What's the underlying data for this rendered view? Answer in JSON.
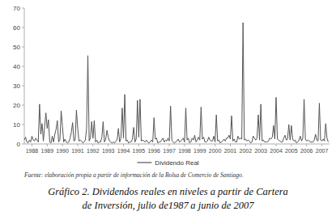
{
  "chart_data": {
    "type": "line",
    "title": "Gráfico 2. Dividendos reales en niveles a partir de Cartera\nde Inversión, julio de1987 a junio de 2007",
    "annotations": [
      "Fuente: elaboración propia a partir de información de la Bolsa de Comercio de Santiago."
    ],
    "categories": [
      null,
      null,
      null,
      null,
      null,
      null,
      "1988",
      null,
      null,
      null,
      null,
      null,
      null,
      null,
      null,
      null,
      null,
      null,
      "1989",
      null,
      null,
      null,
      null,
      null,
      null,
      null,
      null,
      null,
      null,
      null,
      "1990",
      null,
      null,
      null,
      null,
      null,
      null,
      null,
      null,
      null,
      null,
      null,
      "1991",
      null,
      null,
      null,
      null,
      null,
      null,
      null,
      null,
      null,
      null,
      null,
      "1992",
      null,
      null,
      null,
      null,
      null,
      null,
      null,
      null,
      null,
      null,
      null,
      "1993",
      null,
      null,
      null,
      null,
      null,
      null,
      null,
      null,
      null,
      null,
      null,
      "1994",
      null,
      null,
      null,
      null,
      null,
      null,
      null,
      null,
      null,
      null,
      null,
      "1995",
      null,
      null,
      null,
      null,
      null,
      null,
      null,
      null,
      null,
      null,
      null,
      "1996",
      null,
      null,
      null,
      null,
      null,
      null,
      null,
      null,
      null,
      null,
      null,
      "1997",
      null,
      null,
      null,
      null,
      null,
      null,
      null,
      null,
      null,
      null,
      null,
      "1998",
      null,
      null,
      null,
      null,
      null,
      null,
      null,
      null,
      null,
      null,
      null,
      "1999",
      null,
      null,
      null,
      null,
      null,
      null,
      null,
      null,
      null,
      null,
      null,
      "2000",
      null,
      null,
      null,
      null,
      null,
      null,
      null,
      null,
      null,
      null,
      null,
      "2001",
      null,
      null,
      null,
      null,
      null,
      null,
      null,
      null,
      null,
      null,
      null,
      "2002",
      null,
      null,
      null,
      null,
      null,
      null,
      null,
      null,
      null,
      null,
      null,
      "2003",
      null,
      null,
      null,
      null,
      null,
      null,
      null,
      null,
      null,
      null,
      null,
      "2004",
      null,
      null,
      null,
      null,
      null,
      null,
      null,
      null,
      null,
      null,
      null,
      "2005",
      null,
      null,
      null,
      null,
      null,
      null,
      null,
      null,
      null,
      null,
      null,
      "2006",
      null,
      null,
      null,
      null,
      null,
      null,
      null,
      null,
      null,
      null,
      null,
      "2007",
      null,
      null,
      null,
      null,
      null
    ],
    "series": [
      {
        "name": "Dividendo Real",
        "color": "#555555",
        "values": [
          2.0,
          3.5,
          1.0,
          0.5,
          2.0,
          1.0,
          4.0,
          2.0,
          1.5,
          3.0,
          2.0,
          1.0,
          20.5,
          5.0,
          10.5,
          1.5,
          9.0,
          16.0,
          8.0,
          12.5,
          1.0,
          0.5,
          4.0,
          1.0,
          5.0,
          7.5,
          12.0,
          1.0,
          2.0,
          17.0,
          9.0,
          1.0,
          2.5,
          1.0,
          0.5,
          1.0,
          3.0,
          6.0,
          11.0,
          1.5,
          2.0,
          17.5,
          8.0,
          1.5,
          2.0,
          1.5,
          0.5,
          1.0,
          2.0,
          8.0,
          45.5,
          1.5,
          3.0,
          11.5,
          3.0,
          12.0,
          1.0,
          2.0,
          0.5,
          1.0,
          1.0,
          3.5,
          11.5,
          1.0,
          2.5,
          7.0,
          3.5,
          1.5,
          1.0,
          0.5,
          1.0,
          0.5,
          1.5,
          2.0,
          8.0,
          1.0,
          3.0,
          18.5,
          3.0,
          25.5,
          1.5,
          2.0,
          0.5,
          1.0,
          1.0,
          2.5,
          8.5,
          1.0,
          2.5,
          22.5,
          3.5,
          23.0,
          1.5,
          2.0,
          1.5,
          1.0,
          2.0,
          1.0,
          0.5,
          1.0,
          2.0,
          1.0,
          13.5,
          2.5,
          3.0,
          0.5,
          1.0,
          1.0,
          2.0,
          3.0,
          1.0,
          2.0,
          1.5,
          3.0,
          1.5,
          19.5,
          2.0,
          1.0,
          0.5,
          1.0,
          1.5,
          2.5,
          1.0,
          1.5,
          2.0,
          3.0,
          1.0,
          18.5,
          2.0,
          3.0,
          0.5,
          1.0,
          3.0,
          2.0,
          4.5,
          1.0,
          2.0,
          3.5,
          2.0,
          19.0,
          2.5,
          3.5,
          1.0,
          1.0,
          1.5,
          3.5,
          2.0,
          1.5,
          1.5,
          4.0,
          1.0,
          15.0,
          1.5,
          2.0,
          0.5,
          1.0,
          1.5,
          2.5,
          1.5,
          3.0,
          3.0,
          4.5,
          2.5,
          14.5,
          1.5,
          2.5,
          1.0,
          1.0,
          4.0,
          2.5,
          3.0,
          2.5,
          62.5,
          2.0,
          2.5,
          1.5,
          2.0,
          1.5,
          0.5,
          1.0,
          4.0,
          3.0,
          2.0,
          3.0,
          15.0,
          2.0,
          20.5,
          1.5,
          2.0,
          1.0,
          1.0,
          1.0,
          1.5,
          3.0,
          2.5,
          3.5,
          9.5,
          2.5,
          24.0,
          2.5,
          2.0,
          1.5,
          1.0,
          1.0,
          3.0,
          4.5,
          2.0,
          2.5,
          10.0,
          2.0,
          9.5,
          2.5,
          1.5,
          2.0,
          0.5,
          1.0,
          2.0,
          4.0,
          1.5,
          3.0,
          23.0,
          2.5,
          1.5,
          2.0,
          1.5,
          1.0,
          1.0,
          1.0,
          2.0,
          5.0,
          2.0,
          1.5,
          21.0,
          2.0,
          1.5,
          2.5,
          1.5,
          10.5,
          3.0,
          1.0
        ]
      }
    ],
    "ylim": [
      0,
      70
    ],
    "yticks": [
      0,
      10,
      20,
      30,
      40,
      50,
      60,
      70
    ],
    "grid": false,
    "legend": "bottom"
  }
}
